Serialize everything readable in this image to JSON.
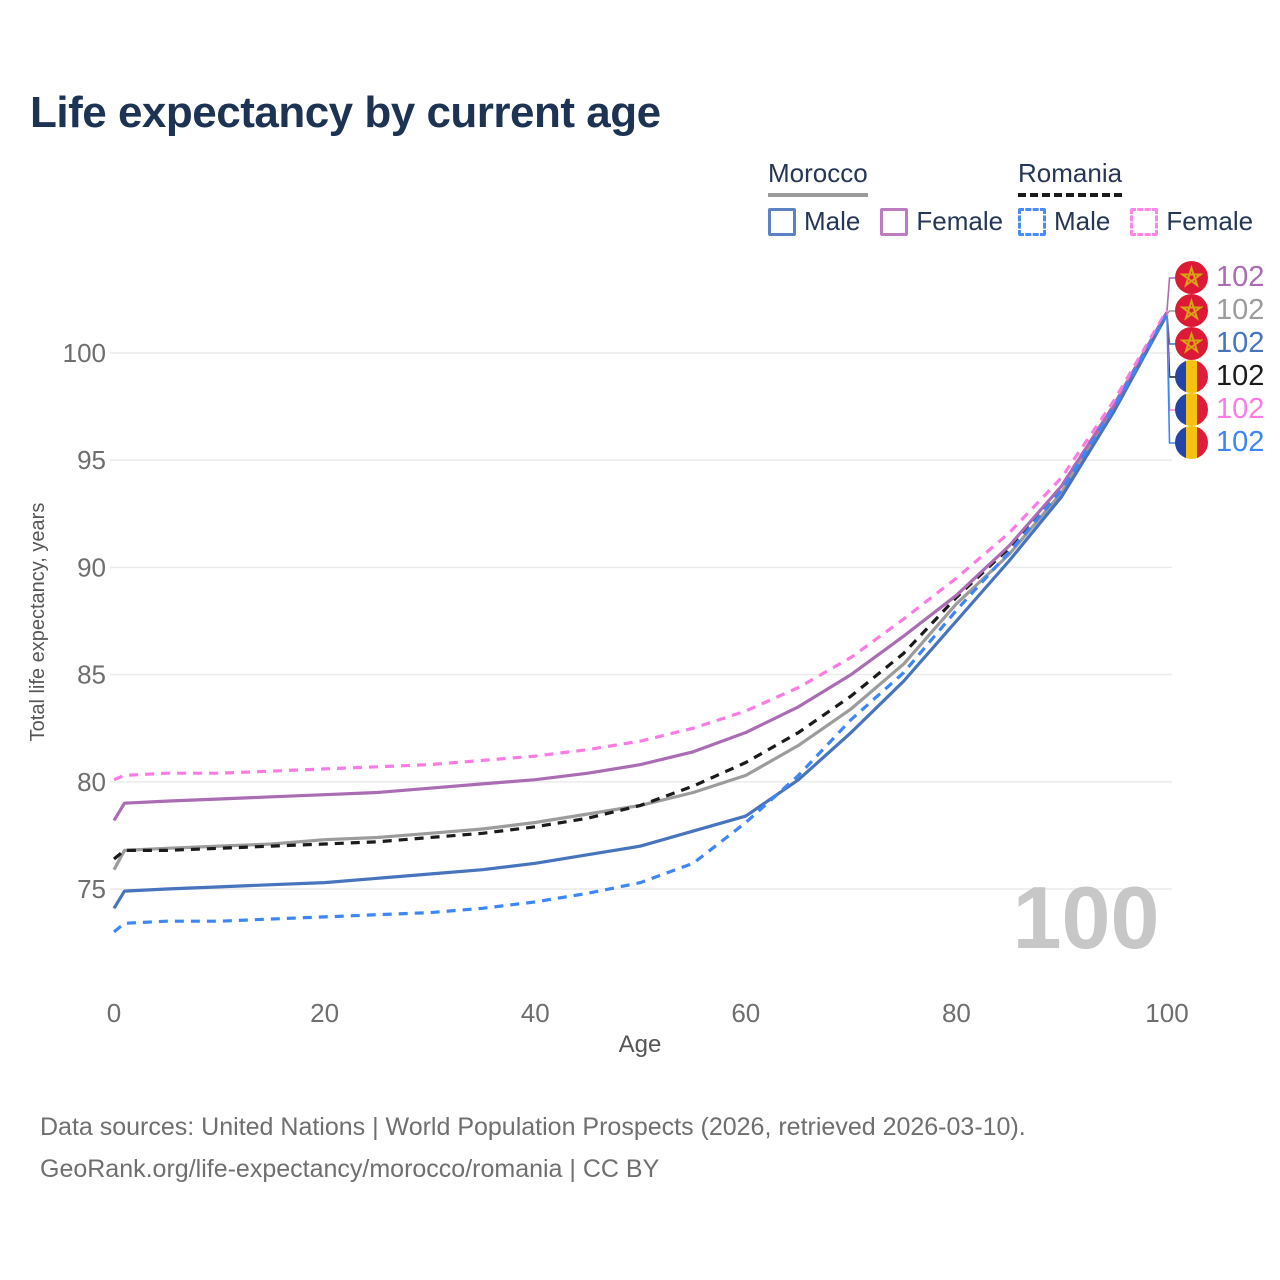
{
  "title": "Life expectancy by current age",
  "legend": {
    "morocco": {
      "name": "Morocco",
      "male_label": "Male",
      "female_label": "Female",
      "underline_style": "solid",
      "underline_color": "#9b9b9b",
      "male_color": "#5b82c4",
      "female_color": "#bd7cc2"
    },
    "romania": {
      "name": "Romania",
      "male_label": "Male",
      "female_label": "Female",
      "underline_style": "dashed",
      "underline_color": "#1b1b1b",
      "male_color": "#4b8bf7",
      "female_color": "#fd86e8"
    }
  },
  "end_labels": [
    {
      "series": "Morocco Female",
      "flag": "morocco",
      "value": "102",
      "color": "#aa6cb3"
    },
    {
      "series": "Morocco Both sexes",
      "flag": "morocco",
      "value": "102",
      "color": "#9c9c9c"
    },
    {
      "series": "Morocco Male",
      "flag": "morocco",
      "value": "102",
      "color": "#4774bd"
    },
    {
      "series": "Romania Both sexes",
      "flag": "romania",
      "value": "102",
      "color": "#1b1b1b"
    },
    {
      "series": "Romania Female",
      "flag": "romania",
      "value": "102",
      "color": "#fb7be5"
    },
    {
      "series": "Romania Male",
      "flag": "romania",
      "value": "102",
      "color": "#3d86f6"
    }
  ],
  "watermark": "100",
  "footer": {
    "line1": "Data sources: United Nations | World Population Prospects (2026, retrieved 2026-03-10).",
    "line2": "GeoRank.org/life-expectancy/morocco/romania | CC BY"
  },
  "chart_data": {
    "type": "line",
    "title": "Life expectancy by current age",
    "xlabel": "Age",
    "ylabel": "Total life expectancy, years",
    "x": [
      0,
      1,
      5,
      10,
      15,
      20,
      25,
      30,
      35,
      40,
      45,
      50,
      55,
      60,
      65,
      70,
      75,
      80,
      85,
      90,
      95,
      100
    ],
    "xticks": [
      0,
      20,
      40,
      60,
      80,
      100
    ],
    "yticks": [
      75,
      80,
      85,
      90,
      95,
      100
    ],
    "xlim": [
      0,
      100
    ],
    "ylim": [
      72.5,
      103
    ],
    "grid": "horizontal",
    "legend_position": "top-right",
    "end_value_label": "102",
    "series": [
      {
        "name": "Morocco Both sexes",
        "country": "Morocco",
        "sex": "All",
        "style": "solid",
        "color": "#9c9c9c",
        "values": [
          75.9,
          76.8,
          76.9,
          77.0,
          77.1,
          77.3,
          77.4,
          77.6,
          77.8,
          78.1,
          78.5,
          78.9,
          79.5,
          80.3,
          81.7,
          83.4,
          85.5,
          88.3,
          90.6,
          93.5,
          97.4,
          101.8
        ]
      },
      {
        "name": "Romania Both sexes",
        "country": "Romania",
        "sex": "All",
        "style": "dashed",
        "color": "#1b1b1b",
        "values": [
          76.4,
          76.8,
          76.8,
          76.9,
          77.0,
          77.1,
          77.2,
          77.4,
          77.6,
          77.9,
          78.3,
          78.9,
          79.8,
          80.9,
          82.3,
          84.0,
          86.0,
          88.6,
          90.9,
          93.8,
          97.6,
          101.9
        ]
      },
      {
        "name": "Morocco Female",
        "country": "Morocco",
        "sex": "Female",
        "style": "solid",
        "color": "#aa6cb3",
        "values": [
          78.2,
          79.0,
          79.1,
          79.2,
          79.3,
          79.4,
          79.5,
          79.7,
          79.9,
          80.1,
          80.4,
          80.8,
          81.4,
          82.3,
          83.5,
          85.0,
          86.8,
          88.7,
          91.0,
          93.8,
          97.6,
          101.9
        ]
      },
      {
        "name": "Romania Female",
        "country": "Romania",
        "sex": "Female",
        "style": "dashed",
        "color": "#fb7be5",
        "values": [
          80.1,
          80.3,
          80.4,
          80.4,
          80.5,
          80.6,
          80.7,
          80.8,
          81.0,
          81.2,
          81.5,
          81.9,
          82.5,
          83.3,
          84.4,
          85.8,
          87.6,
          89.5,
          91.6,
          94.2,
          97.8,
          102.0
        ]
      },
      {
        "name": "Morocco Male",
        "country": "Morocco",
        "sex": "Male",
        "style": "solid",
        "color": "#4774bd",
        "values": [
          74.1,
          74.9,
          75.0,
          75.1,
          75.2,
          75.3,
          75.5,
          75.7,
          75.9,
          76.2,
          76.6,
          77.0,
          77.7,
          78.4,
          80.1,
          82.3,
          84.7,
          87.5,
          90.3,
          93.3,
          97.3,
          101.8
        ]
      },
      {
        "name": "Romania Male",
        "country": "Romania",
        "sex": "Male",
        "style": "dashed",
        "color": "#3d86f6",
        "values": [
          73.0,
          73.4,
          73.5,
          73.5,
          73.6,
          73.7,
          73.8,
          73.9,
          74.1,
          74.4,
          74.8,
          75.3,
          76.2,
          78.1,
          80.3,
          82.9,
          85.1,
          88.0,
          90.7,
          93.6,
          97.5,
          101.8
        ]
      }
    ]
  }
}
